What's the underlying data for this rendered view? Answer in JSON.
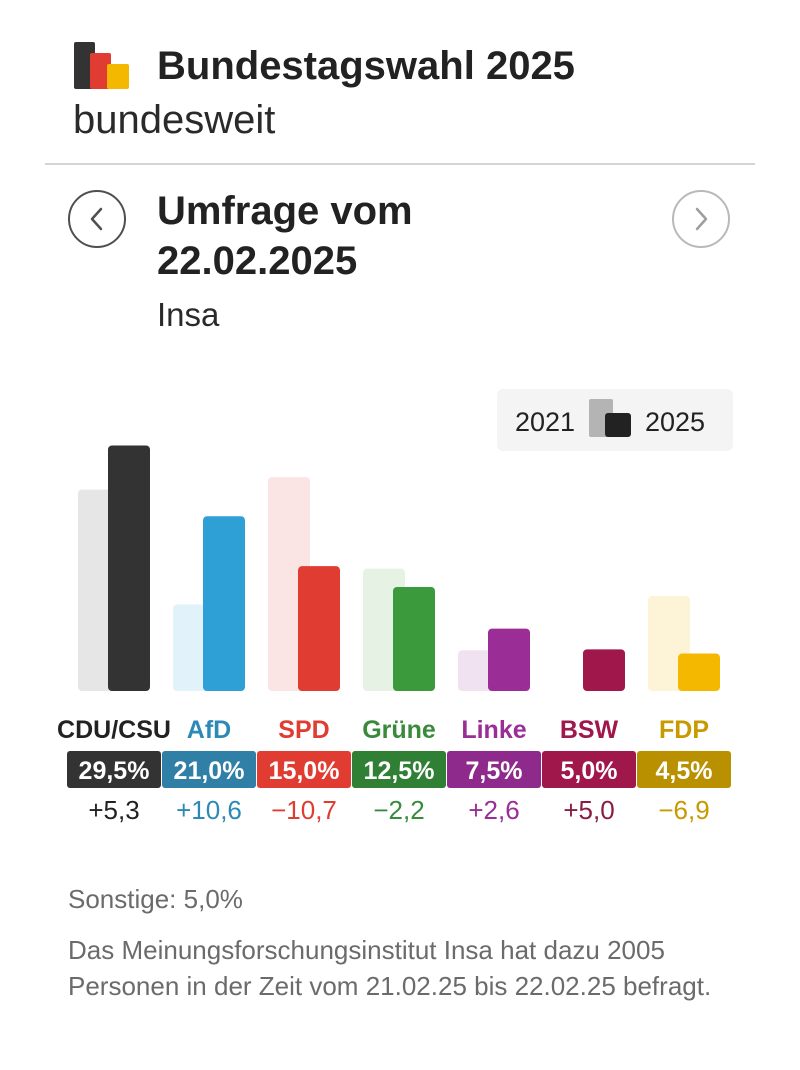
{
  "header": {
    "title": "Bundestagswahl 2025",
    "subtitle": "bundesweit",
    "logo_colors": [
      "#333333",
      "#e03c31",
      "#f5b800"
    ]
  },
  "poll": {
    "title": "Umfrage vom 22.02.2025",
    "institute": "Insa",
    "prev_icon": "chevron-left-icon",
    "next_icon": "chevron-right-icon"
  },
  "legend": {
    "previous_label": "2021",
    "current_label": "2025"
  },
  "chart_data": {
    "type": "bar",
    "categories": [
      "CDU/CSU",
      "AfD",
      "SPD",
      "Grüne",
      "Linke",
      "BSW",
      "FDP"
    ],
    "series": [
      {
        "name": "2021",
        "values": [
          24.2,
          10.4,
          25.7,
          14.7,
          4.9,
          0,
          11.4
        ]
      },
      {
        "name": "2025",
        "values": [
          29.5,
          21.0,
          15.0,
          12.5,
          7.5,
          5.0,
          4.5
        ]
      }
    ],
    "value_labels": [
      "29,5%",
      "21,0%",
      "15,0%",
      "12,5%",
      "7,5%",
      "5,0%",
      "4,5%"
    ],
    "diff_labels": [
      "+5,3",
      "+10,6",
      "−10,7",
      "−2,2",
      "+2,6",
      "+5,0",
      "−6,9"
    ],
    "colors": [
      "#333333",
      "#2fa0d6",
      "#e03c31",
      "#3a9a3c",
      "#9b2d96",
      "#a0174c",
      "#f5b800"
    ],
    "label_colors": [
      "#222222",
      "#2d89b5",
      "#e03c31",
      "#3a8a3c",
      "#9b2d96",
      "#a0174c",
      "#c79a00"
    ],
    "badge_colors": [
      "#333333",
      "#2f7fa6",
      "#e03c31",
      "#2f7f34",
      "#8e2a8b",
      "#a0174c",
      "#b89000"
    ],
    "diff_colors": [
      "#222222",
      "#2d89b5",
      "#e03c31",
      "#3a8a3c",
      "#9b2d96",
      "#8a1c44",
      "#c79a00"
    ],
    "previous_colors": [
      "#e6e6e6",
      "#e2f2fa",
      "#fbe5e4",
      "#e6f2e4",
      "#f1e2f1",
      "#f4e1e8",
      "#fdf3d6"
    ],
    "ylim": [
      0,
      32
    ],
    "legend_position": "top-right",
    "grid": false
  },
  "footer": {
    "others": "Sonstige: 5,0%",
    "description": "Das Meinungsforschungsinstitut Insa hat dazu 2005 Personen in der Zeit vom 21.02.25 bis 22.02.25 befragt."
  }
}
